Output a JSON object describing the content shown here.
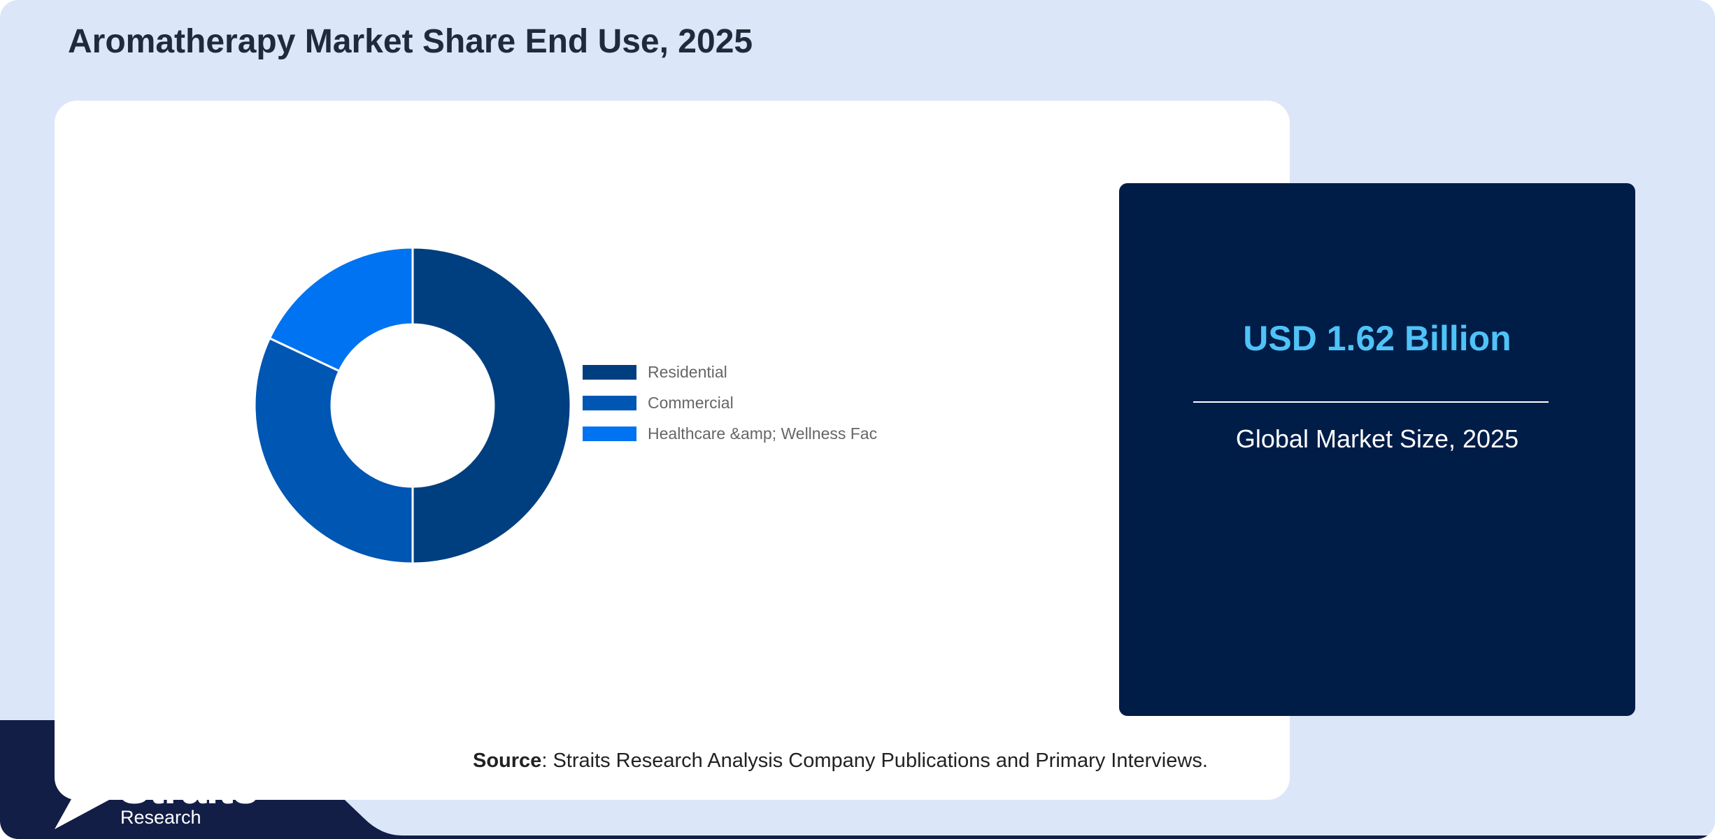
{
  "page": {
    "title": "Aromatherapy Market Share End Use, 2025"
  },
  "chart_data": {
    "type": "pie",
    "variant": "donut",
    "categories": [
      "Residential",
      "Commercial",
      "Healthcare &amp; Wellness Fac"
    ],
    "values": [
      50,
      32,
      18
    ],
    "unit": "%",
    "colors": [
      "#003f7f",
      "#0056b3",
      "#0073f2"
    ],
    "legend_position": "right"
  },
  "stat_card": {
    "value": "USD 1.62 Billion",
    "label": "Global Market Size, 2025"
  },
  "source": {
    "label": "Source",
    "text": ": Straits Research Analysis Company Publications and Primary Interviews."
  },
  "brand": {
    "name": "Straits",
    "sub": "Research"
  },
  "colors": {
    "background": "#dbe7f8",
    "panel": "#ffffff",
    "navy": "#001d48",
    "corner_navy": "#131e47",
    "accent": "#4fc3f7"
  }
}
